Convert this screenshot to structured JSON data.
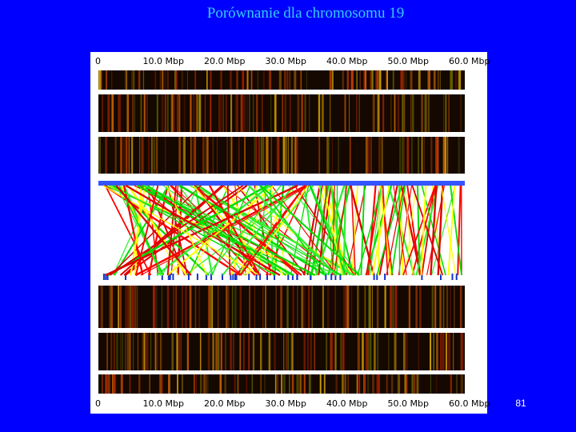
{
  "header": {
    "title": "Porównanie dla chromosomu 19"
  },
  "figure": {
    "top_scale": [
      "0",
      "10.0 Mbp",
      "20.0 Mbp",
      "30.0 Mbp",
      "40.0 Mbp",
      "50.0 Mbp",
      "60.0 Mbp"
    ],
    "bottom_scale": [
      "0",
      "10.0 Mbp",
      "20.0 Mbp",
      "30.0 Mbp",
      "40.0 Mbp",
      "50.0 Mbp",
      "60.0 Mbp"
    ]
  },
  "footer": {
    "page_number": "81"
  }
}
